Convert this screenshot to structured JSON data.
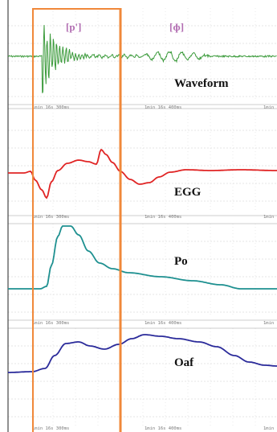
{
  "markers": {
    "left_label": "[p']",
    "right_label": "[ɸ]"
  },
  "time_labels": [
    "1min 16s 300ms",
    "1min 16s 400ms",
    "1min"
  ],
  "panels": [
    {
      "id": "waveform",
      "label": "Waveform",
      "color": "#3a9a3a"
    },
    {
      "id": "egg",
      "label": "EGG",
      "color": "#e02424"
    },
    {
      "id": "po",
      "label": "Po",
      "color": "#1e9090"
    },
    {
      "id": "oaf",
      "label": "Oaf",
      "color": "#2a2a9a"
    }
  ],
  "colors": {
    "cursor": "#f0883a",
    "grid": "#c9c9c9",
    "border": "#222222",
    "marker_text": "#b36fb3"
  }
}
